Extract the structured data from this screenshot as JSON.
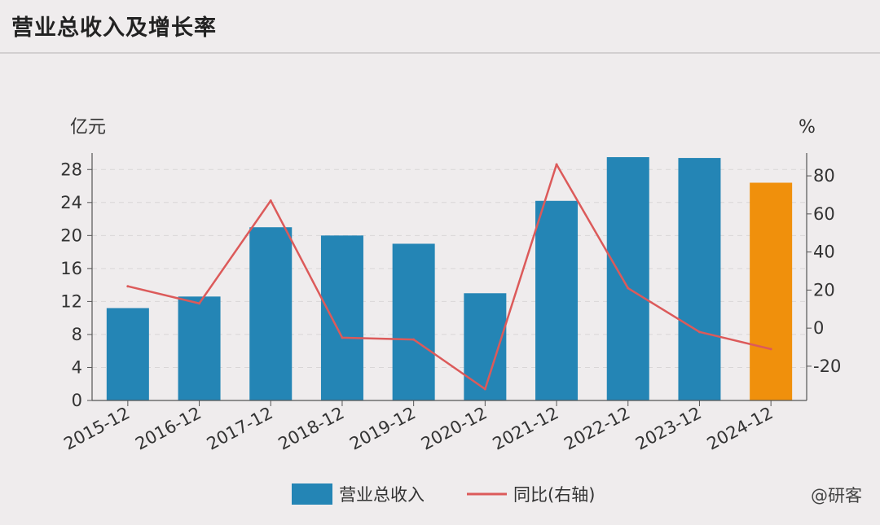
{
  "title": "营业总收入及增长率",
  "watermark": "@研客",
  "chart_data": {
    "type": "bar",
    "categories": [
      "2015-12",
      "2016-12",
      "2017-12",
      "2018-12",
      "2019-12",
      "2020-12",
      "2021-12",
      "2022-12",
      "2023-12",
      "2024-12"
    ],
    "series": [
      {
        "name": "营业总收入",
        "type": "bar",
        "axis": "left",
        "values": [
          11.2,
          12.6,
          21.0,
          20.0,
          19.0,
          13.0,
          24.2,
          29.5,
          29.4,
          26.4
        ],
        "color": "#2485b5",
        "highlight": {
          "index": 9,
          "color": "#f0900c"
        }
      },
      {
        "name": "同比(右轴)",
        "type": "line",
        "axis": "right",
        "values": [
          22,
          13,
          67,
          -5,
          -6,
          -32,
          86,
          21,
          -2,
          -11
        ],
        "color": "#dc5a5a"
      }
    ],
    "left_axis": {
      "unit": "亿元",
      "min": 0,
      "max": 30,
      "ticks": [
        0,
        4,
        8,
        12,
        16,
        20,
        24,
        28
      ]
    },
    "right_axis": {
      "unit": "%",
      "min": -38,
      "max": 92,
      "ticks": [
        -20,
        0,
        20,
        40,
        60,
        80
      ]
    },
    "grid": true,
    "legend_position": "bottom"
  }
}
